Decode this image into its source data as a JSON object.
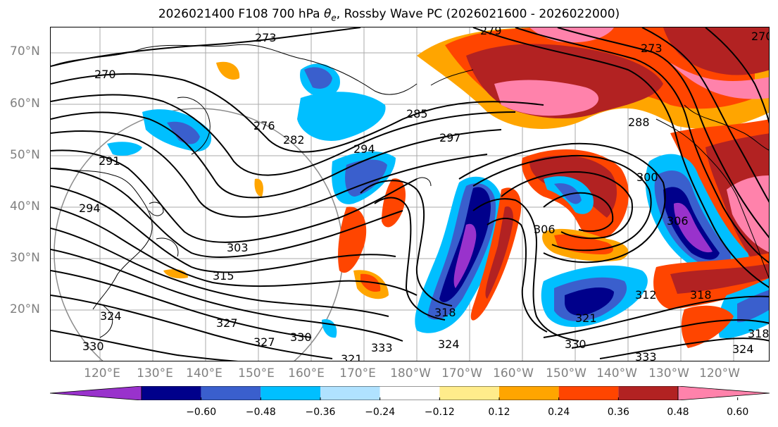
{
  "title_prefix": "2026021400 F108 700 hPa ",
  "title_var": "θ",
  "title_sub": "e",
  "title_suffix": ", Rossby Wave PC (2026021600 - 2026022000)",
  "lat_labels": [
    "70°N",
    "60°N",
    "50°N",
    "40°N",
    "30°N",
    "20°N"
  ],
  "lon_labels": [
    "120°E",
    "130°E",
    "140°E",
    "150°E",
    "160°E",
    "170°E",
    "180°W",
    "170°W",
    "160°W",
    "150°W",
    "140°W",
    "130°W",
    "120°W"
  ],
  "colorbar": {
    "colors": [
      "#9932cc",
      "#00008b",
      "#3a5fcd",
      "#00bfff",
      "#b0e2ff",
      "#ffffff",
      "#ffec8b",
      "#ffa500",
      "#ff4500",
      "#b22222",
      "#ff82ab"
    ],
    "ticks": [
      "−0.60",
      "−0.48",
      "−0.36",
      "−0.24",
      "−0.12",
      "0.12",
      "0.24",
      "0.36",
      "0.48",
      "0.60"
    ]
  },
  "contour_labels": [
    "273",
    "279",
    "270",
    "276",
    "282",
    "285",
    "297",
    "294",
    "291",
    "294",
    "303",
    "315",
    "324",
    "327",
    "330",
    "333",
    "321",
    "324",
    "327",
    "330",
    "288",
    "300",
    "306",
    "306",
    "312",
    "318",
    "318",
    "321",
    "324",
    "330",
    "333",
    "318",
    "270",
    "273"
  ]
}
